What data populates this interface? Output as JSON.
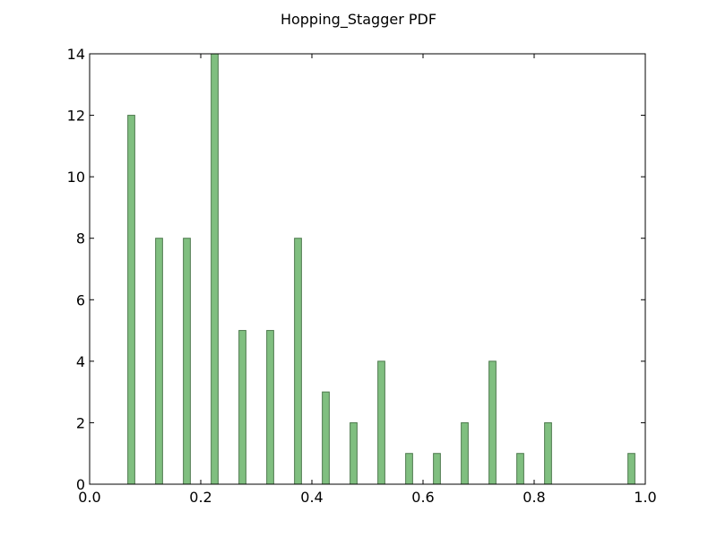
{
  "chart_data": {
    "type": "bar",
    "title": "Hopping_Stagger PDF",
    "xlabel": "",
    "ylabel": "",
    "xlim": [
      0.0,
      1.0
    ],
    "ylim": [
      0,
      14
    ],
    "grid": false,
    "bar_width": 0.0125,
    "x": [
      0.075,
      0.125,
      0.175,
      0.225,
      0.275,
      0.325,
      0.375,
      0.425,
      0.475,
      0.525,
      0.575,
      0.625,
      0.675,
      0.725,
      0.775,
      0.825,
      0.975
    ],
    "values": [
      12,
      8,
      8,
      14,
      5,
      5,
      8,
      3,
      2,
      4,
      1,
      1,
      2,
      4,
      1,
      2,
      1
    ],
    "x_ticks": [
      0.0,
      0.2,
      0.4,
      0.6,
      0.8,
      1.0
    ],
    "x_tick_labels": [
      "0.0",
      "0.2",
      "0.4",
      "0.6",
      "0.8",
      "1.0"
    ],
    "y_ticks": [
      0,
      2,
      4,
      6,
      8,
      10,
      12,
      14
    ],
    "y_tick_labels": [
      "0",
      "2",
      "4",
      "6",
      "8",
      "10",
      "12",
      "14"
    ],
    "colors": {
      "bar_fill": "#80bf80",
      "bar_edge": "#4d7a4d",
      "axis": "#000000"
    }
  }
}
